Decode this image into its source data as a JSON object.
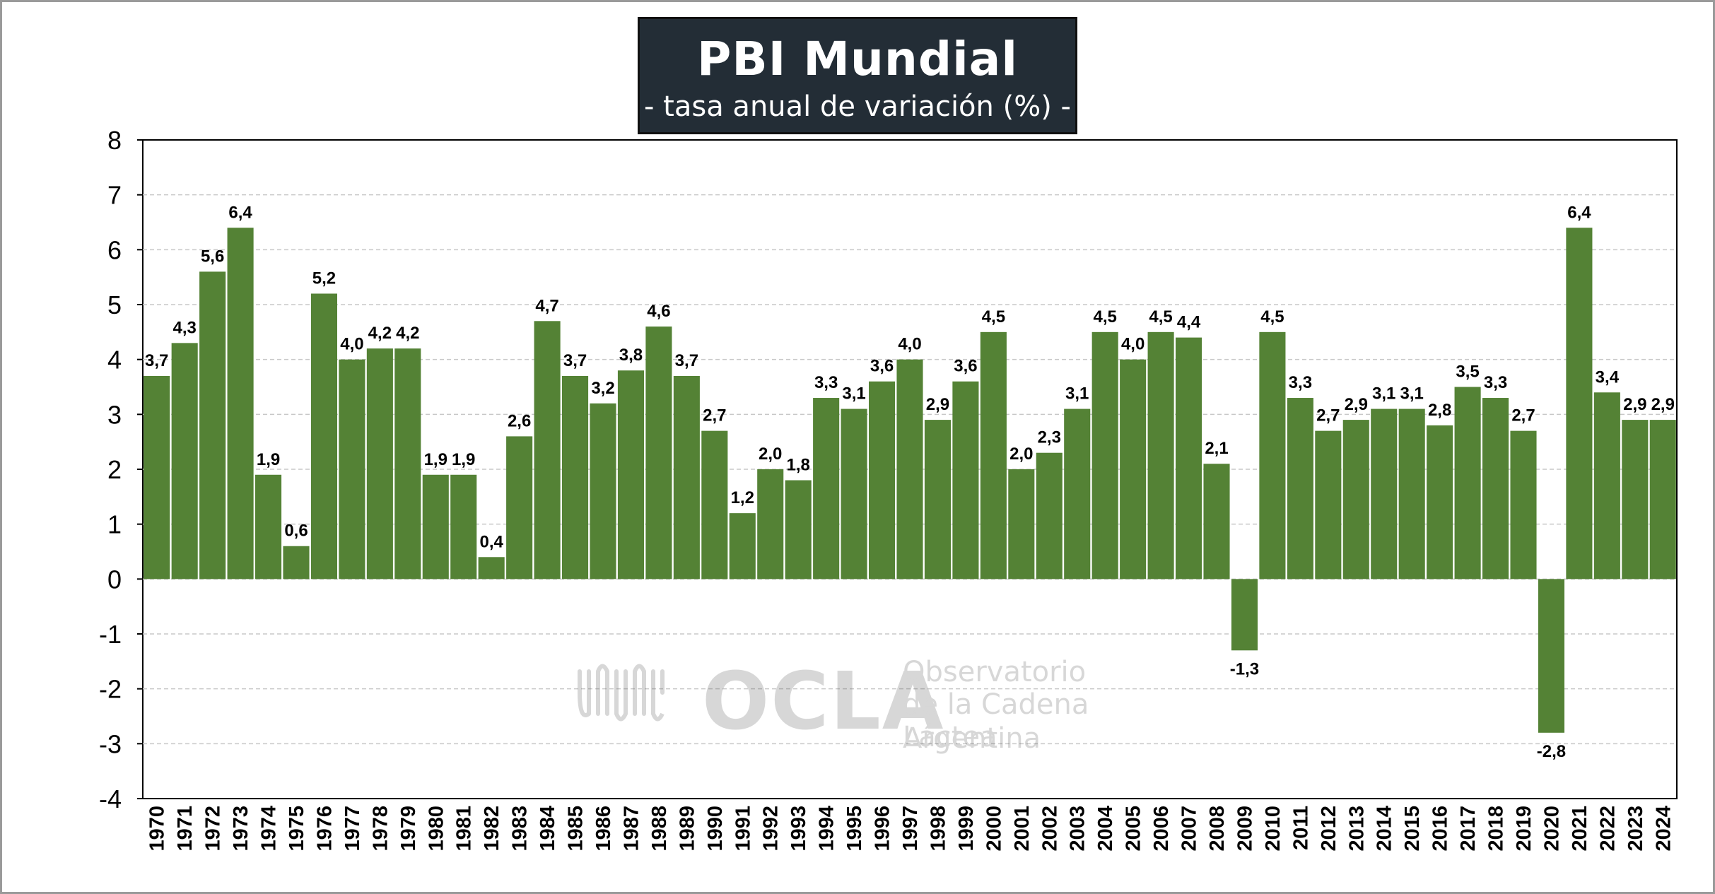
{
  "title": "PBI Mundial",
  "subtitle": "- tasa anual de variación (%) -",
  "watermark": {
    "brand": "OCLA",
    "line1": "Observatorio",
    "line2": "de la Cadena Láctea",
    "line3": "Argentina"
  },
  "colors": {
    "bar": "#548235",
    "title_bg": "#232d36",
    "gridline": "#c8c8c8"
  },
  "chart_data": {
    "type": "bar",
    "title": "PBI Mundial",
    "subtitle": "- tasa anual de variación (%) -",
    "xlabel": "",
    "ylabel": "",
    "ylim": [
      -4,
      8
    ],
    "yticks": [
      "-4",
      "-3",
      "-2",
      "-1",
      "0",
      "1",
      "2",
      "3",
      "4",
      "5",
      "6",
      "7",
      "8"
    ],
    "grid": true,
    "categories": [
      "1970",
      "1971",
      "1972",
      "1973",
      "1974",
      "1975",
      "1976",
      "1977",
      "1978",
      "1979",
      "1980",
      "1981",
      "1982",
      "1983",
      "1984",
      "1985",
      "1986",
      "1987",
      "1988",
      "1989",
      "1990",
      "1991",
      "1992",
      "1993",
      "1994",
      "1995",
      "1996",
      "1997",
      "1998",
      "1999",
      "2000",
      "2001",
      "2002",
      "2003",
      "2004",
      "2005",
      "2006",
      "2007",
      "2008",
      "2009",
      "2010",
      "2011",
      "2012",
      "2013",
      "2014",
      "2015",
      "2016",
      "2017",
      "2018",
      "2019",
      "2020",
      "2021",
      "2022",
      "2023",
      "2024"
    ],
    "values": [
      3.7,
      4.3,
      5.6,
      6.4,
      1.9,
      0.6,
      5.2,
      4.0,
      4.2,
      4.2,
      1.9,
      1.9,
      0.4,
      2.6,
      4.7,
      3.7,
      3.2,
      3.8,
      4.6,
      3.7,
      2.7,
      1.2,
      2.0,
      1.8,
      3.3,
      3.1,
      3.6,
      4.0,
      2.9,
      3.6,
      4.5,
      2.0,
      2.3,
      3.1,
      4.5,
      4.0,
      4.5,
      4.4,
      2.1,
      -1.3,
      4.5,
      3.3,
      2.7,
      2.9,
      3.1,
      3.1,
      2.8,
      3.5,
      3.3,
      2.7,
      -2.8,
      6.4,
      3.4,
      2.9,
      2.9
    ],
    "data_labels": [
      "3,7",
      "4,3",
      "5,6",
      "6,4",
      "1,9",
      "0,6",
      "5,2",
      "4,0",
      "4,2",
      "4,2",
      "1,9",
      "1,9",
      "0,4",
      "2,6",
      "4,7",
      "3,7",
      "3,2",
      "3,8",
      "4,6",
      "3,7",
      "2,7",
      "1,2",
      "2,0",
      "1,8",
      "3,3",
      "3,1",
      "3,6",
      "4,0",
      "2,9",
      "3,6",
      "4,5",
      "2,0",
      "2,3",
      "3,1",
      "4,5",
      "4,0",
      "4,5",
      "4,4",
      "2,1",
      "-1,3",
      "4,5",
      "3,3",
      "2,7",
      "2,9",
      "3,1",
      "3,1",
      "2,8",
      "3,5",
      "3,3",
      "2,7",
      "-2,8",
      "6,4",
      "3,4",
      "2,9",
      "2,9"
    ]
  }
}
